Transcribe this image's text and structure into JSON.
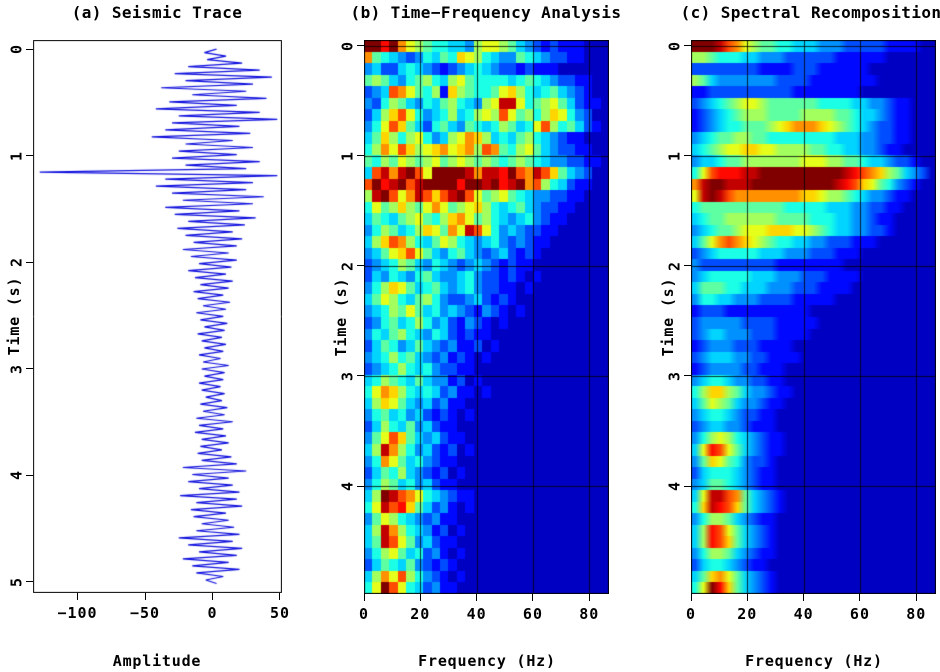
{
  "figure": {
    "background": "#ffffff",
    "axis_color": "#000000",
    "trace_color": "#0b0bdd"
  },
  "chart_data": [
    {
      "id": "trace",
      "type": "line",
      "title": "(a) Seismic Trace",
      "xlabel": "Amplitude",
      "ylabel": "Time (s)",
      "xlim": [
        -133,
        51.5
      ],
      "ylim": [
        -0.085,
        5.105
      ],
      "xticks": [
        -100,
        -50,
        0,
        50
      ],
      "yticks": [
        0,
        1,
        2,
        3,
        4,
        5
      ],
      "grid": false,
      "line_color": "#0b0bdd",
      "samples": {
        "t0": 0,
        "dt": 0.033,
        "amplitude": [
          3,
          -6,
          10,
          -4,
          22,
          -18,
          35,
          -28,
          44,
          -20,
          30,
          -38,
          25,
          -15,
          40,
          -32,
          18,
          -42,
          35,
          -25,
          48,
          -30,
          20,
          -35,
          28,
          -45,
          15,
          -20,
          30,
          -25,
          18,
          -30,
          35,
          -20,
          25,
          -128,
          48,
          -35,
          30,
          -42,
          25,
          -30,
          38,
          -22,
          30,
          -35,
          20,
          -28,
          32,
          -18,
          24,
          -26,
          15,
          -20,
          22,
          -14,
          18,
          -22,
          12,
          -16,
          18,
          -10,
          14,
          -18,
          10,
          -13,
          15,
          -9,
          12,
          -14,
          8,
          -11,
          13,
          -7,
          10,
          -12,
          8,
          -9,
          11,
          -6,
          9,
          -11,
          7,
          -8,
          10,
          -6,
          8,
          -10,
          6,
          -7,
          12,
          -8,
          9,
          -6,
          8,
          -10,
          6,
          -8,
          9,
          -5,
          7,
          -9,
          11,
          -7,
          9,
          -12,
          15,
          -10,
          8,
          -13,
          10,
          -8,
          12,
          -9,
          7,
          -11,
          14,
          -8,
          18,
          -22,
          25,
          -15,
          12,
          -18,
          15,
          -10,
          20,
          -24,
          18,
          -12,
          22,
          -16,
          10,
          -14,
          12,
          -8,
          16,
          -12,
          20,
          -25,
          15,
          -18,
          22,
          -10,
          18,
          -22,
          12,
          -15,
          20,
          -12,
          8,
          -5,
          3
        ]
      }
    },
    {
      "id": "tfa",
      "type": "heatmap",
      "title": "(b) Time−Frequency Analysis",
      "xlabel": "Frequency (Hz)",
      "ylabel": "Time (s)",
      "xlim": [
        0,
        87
      ],
      "ylim": [
        -0.05,
        4.98
      ],
      "xticks": [
        0,
        20,
        40,
        60,
        80
      ],
      "yticks": [
        0,
        1,
        2,
        3,
        4
      ],
      "grid": true,
      "colormap": "jet",
      "value_scale": [
        0,
        15
      ],
      "cols": 29,
      "x_bin_hz": 3,
      "y_bin_s": 0.104,
      "smooth_x": false,
      "rows": [
        "ffdfb9876655489987543232221",
        "b7654346576a986544765433221",
        "4533565432345654332322211",
        "78754678658976666567654332211",
        "345cb97682a876679a8656754321",
        "4368754657865489ee9678975322",
        "358ac96456856898c97868a9643",
        "469ca7536754765687569c867532",
        "57a868964589ba856578654322",
        "68b9ca89ab9ab8cb768975433221",
        "7687987897898787678765443322",
        "5cebefc9ffffebeedfcbeca75431",
        "cfdefceffffdffefdefbc8653221",
        "8efc9becacefc97897654433221",
        "6978a879b9789a8656754332211",
        "5765789768ab97865456432211",
        "4687568a97b9ec964543322111",
        "58acb865798654564343221111",
        "4579ac975467543453232111",
        "345687546543454323221111",
        "3546546754456433232121111",
        "468a975675456433221211111",
        "579865786433453232111111",
        "456879756454324321211111",
        "346756864532432121111111",
        "465786546532322111111111",
        "357645754342231211111111",
        "456867543423212111111111",
        "345686564332211111111111",
        "568765754423121111111111",
        "69ba865653422121111111111",
        "58a975453422111111111111",
        "467564532321211111111111",
        "358657453221111111111111",
        "479ca754532211111111111",
        "58eb8645323121111111111",
        "46b975643221111111111111",
        "357685432312111111111111",
        "468756453221111111111111",
        "58fecb9654322111111111111",
        "69ecda7534212111111111111",
        "479865434221111111111111",
        "58eb8654231211111111111",
        "57ec974532211111111111",
        "4689756342121111111111",
        "357657432321111111111",
        "58b9c864321211111111111",
        "69fc96534221111111111111"
      ]
    },
    {
      "id": "recomp",
      "type": "heatmap",
      "title": "(c) Spectral Recomposition",
      "xlabel": "Frequency (Hz)",
      "ylabel": "Time (s)",
      "xlim": [
        0,
        87
      ],
      "ylim": [
        -0.05,
        4.98
      ],
      "xticks": [
        0,
        20,
        40,
        60,
        80
      ],
      "yticks": [
        0,
        1,
        2,
        3,
        4
      ],
      "grid": true,
      "colormap": "jet",
      "value_scale": [
        0,
        15
      ],
      "cols": 29,
      "x_bin_hz": 3,
      "y_bin_s": 0.104,
      "smooth_x": true,
      "rows": [
        "fffecb9877665554443333322221",
        "887666554443333332222221111",
        "333333332222333222222111111",
        "875444444433332222222211111",
        "223333333333222222221111111",
        "345678998777777666655443221",
        "234567888777788887765543221",
        "23456677789abbba98765433221",
        "456778877666666665554433221",
        "567899aa998888776655443221",
        "455677888888899988776554332",
        "69cdddeeffffffffffedcba87543",
        "beffeeeffffffffffedca976432",
        "9efecbbbbbbbbaa9887654432211",
        "677777777776666655544332211",
        "567788888877776665544322111",
        "456778999aaa998765544332111",
        "579bcba987665544333222111111",
        "345666665554443332221111111",
        "433333333322222222111111111",
        "456666655544433322221111111",
        "577766555444333222211111111",
        "466554443333222221111111111",
        "233322222222221111111111111",
        "344444333322222111111111111",
        "345544433322221111111111111",
        "234443332222111111111111111",
        "345554433222211111111111111",
        "234444332221111111111111111",
        "456654433221111111111111111",
        "68aa87544322111111111111111",
        "579875443221111111111111111",
        "456654332211111111111111111",
        "345544322211111111111111111",
        "468986543221111111111111111",
        "59dc97543221111111111111111",
        "47a97643321111111111111111",
        "356665432211111111111111111",
        "457765432211111111111111111",
        "59eecb7543211111111111111111",
        "6aedca754321111111111111111",
        "468875432211111111111111111",
        "58dc97543211111111111111111",
        "58dca754321111111111111111",
        "468875432211111111111111111",
        "356654322111111111111111111",
        "57ab975432111111111111111111",
        "69fda754321111111111111111"
      ]
    }
  ]
}
